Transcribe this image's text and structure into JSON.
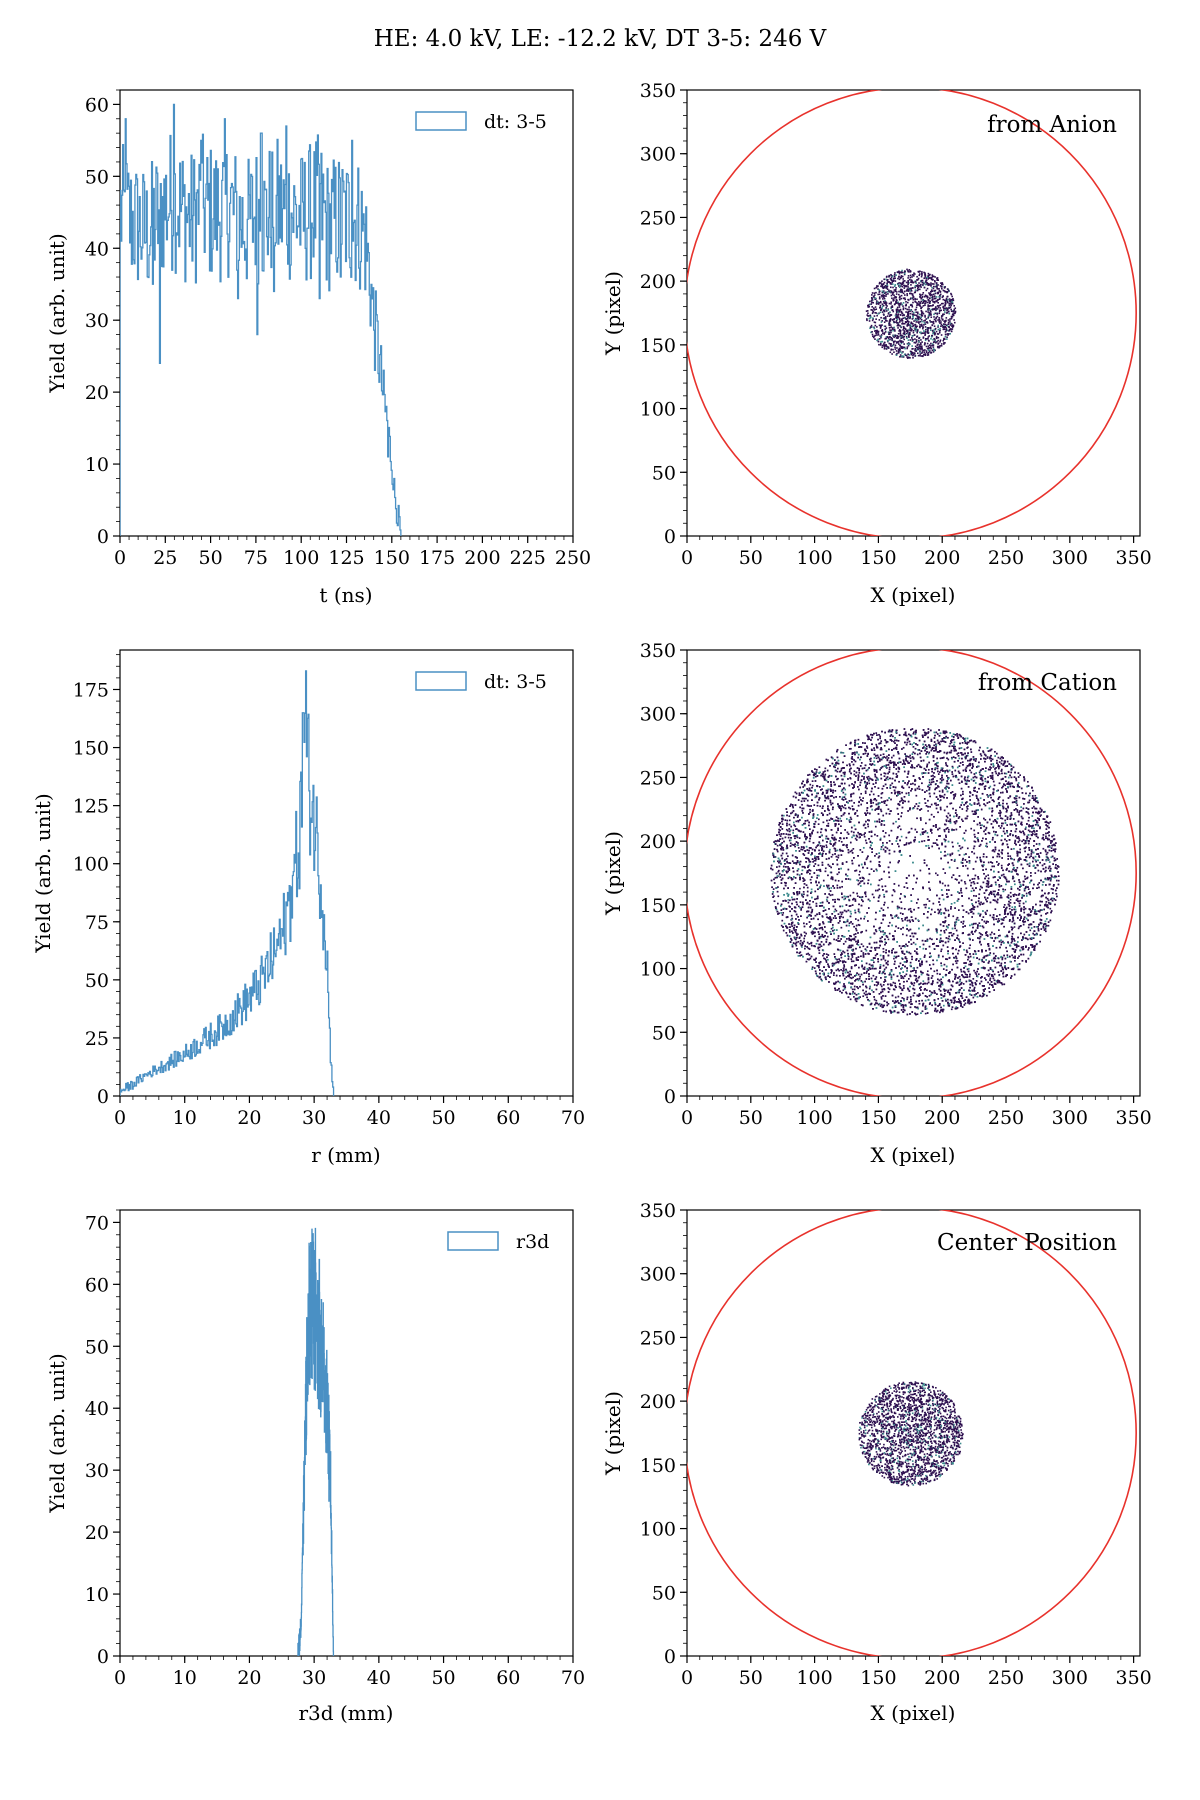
{
  "figure": {
    "title": "HE: 4.0 kV, LE: -12.2 kV, DT 3-5: 246 V"
  },
  "colors": {
    "hist": "#4a90c4",
    "circle": "#e8322c",
    "points": "#2d0f4f",
    "points_alt": "#3a8a8c"
  },
  "chart_data": [
    {
      "id": "p1",
      "type": "histogram",
      "xlabel": "t (ns)",
      "ylabel": "Yield (arb. unit)",
      "xlim": [
        0,
        250
      ],
      "ylim": [
        0,
        62
      ],
      "xticks": [
        0,
        25,
        50,
        75,
        100,
        125,
        150,
        175,
        200,
        225,
        250
      ],
      "yticks": [
        0,
        10,
        20,
        30,
        40,
        50,
        60
      ],
      "legend": {
        "label": "dt: 3-5",
        "placement": "upper right"
      },
      "series": {
        "x": [
          0,
          5,
          10,
          15,
          20,
          25,
          30,
          35,
          40,
          45,
          50,
          55,
          60,
          65,
          70,
          75,
          80,
          85,
          90,
          95,
          100,
          105,
          110,
          115,
          120,
          125,
          130,
          135,
          138,
          140,
          143,
          145,
          148,
          150,
          152,
          154,
          155
        ],
        "y": [
          45,
          44,
          43,
          42,
          44,
          46,
          47,
          45,
          44,
          46,
          45,
          45,
          46,
          44,
          43,
          45,
          44,
          46,
          45,
          45,
          44,
          45,
          46,
          43,
          44,
          44,
          44,
          42,
          36,
          30,
          25,
          20,
          15,
          10,
          5,
          2,
          0
        ],
        "spikes": [
          [
            3,
            58
          ],
          [
            18,
            35
          ],
          [
            22,
            24
          ],
          [
            30,
            60
          ],
          [
            45,
            55
          ],
          [
            58,
            58
          ],
          [
            65,
            33
          ],
          [
            76,
            28
          ],
          [
            78,
            56
          ],
          [
            85,
            34
          ],
          [
            92,
            57
          ],
          [
            110,
            33
          ],
          [
            122,
            36
          ],
          [
            128,
            55
          ],
          [
            148,
            11
          ]
        ]
      }
    },
    {
      "id": "p2",
      "type": "scatter",
      "annotation": "from Anion",
      "xlabel": "X (pixel)",
      "ylabel": "Y (pixel)",
      "xlim": [
        0,
        355
      ],
      "ylim": [
        0,
        350
      ],
      "xticks": [
        0,
        50,
        100,
        150,
        200,
        250,
        300,
        350
      ],
      "yticks": [
        0,
        50,
        100,
        150,
        200,
        250,
        300,
        350
      ],
      "circle": {
        "cx": 175,
        "cy": 175,
        "r": 177
      },
      "spot": {
        "cx": 175,
        "cy": 175,
        "r": 35
      }
    },
    {
      "id": "p3",
      "type": "histogram",
      "xlabel": "r (mm)",
      "ylabel": "Yield (arb. unit)",
      "xlim": [
        0,
        70
      ],
      "ylim": [
        0,
        192
      ],
      "xticks": [
        0,
        10,
        20,
        30,
        40,
        50,
        60,
        70
      ],
      "yticks": [
        0,
        25,
        50,
        75,
        100,
        125,
        150,
        175
      ],
      "legend": {
        "label": "dt: 3-5",
        "placement": "upper right"
      },
      "series": {
        "x": [
          0,
          2,
          4,
          6,
          8,
          10,
          12,
          14,
          16,
          18,
          20,
          22,
          24,
          26,
          27,
          28,
          28.5,
          29,
          29.5,
          30,
          31,
          32,
          32.5,
          33
        ],
        "y": [
          2,
          5,
          9,
          12,
          15,
          18,
          22,
          26,
          30,
          36,
          42,
          50,
          62,
          80,
          95,
          120,
          150,
          140,
          130,
          120,
          95,
          60,
          20,
          0
        ],
        "spikes": [
          [
            28.7,
            183
          ],
          [
            28.3,
            165
          ],
          [
            25,
            72
          ],
          [
            26.5,
            90
          ],
          [
            24,
            60
          ],
          [
            31.5,
            78
          ]
        ]
      }
    },
    {
      "id": "p4",
      "type": "scatter",
      "annotation": "from Cation",
      "xlabel": "X (pixel)",
      "ylabel": "Y (pixel)",
      "xlim": [
        0,
        355
      ],
      "ylim": [
        0,
        350
      ],
      "xticks": [
        0,
        50,
        100,
        150,
        200,
        250,
        300,
        350
      ],
      "yticks": [
        0,
        50,
        100,
        150,
        200,
        250,
        300,
        350
      ],
      "circle": {
        "cx": 175,
        "cy": 175,
        "r": 177
      },
      "spot": {
        "cx": 178,
        "cy": 177,
        "r": 113
      }
    },
    {
      "id": "p5",
      "type": "histogram",
      "xlabel": "r3d (mm)",
      "ylabel": "Yield (arb. unit)",
      "xlim": [
        0,
        70
      ],
      "ylim": [
        0,
        72
      ],
      "xticks": [
        0,
        10,
        20,
        30,
        40,
        50,
        60,
        70
      ],
      "yticks": [
        0,
        10,
        20,
        30,
        40,
        50,
        60,
        70
      ],
      "legend": {
        "label": "r3d",
        "placement": "upper right"
      },
      "series": {
        "x": [
          27.5,
          28,
          28.5,
          29,
          29.5,
          30,
          30.5,
          31,
          31.5,
          32,
          32.5,
          33
        ],
        "y": [
          0,
          5,
          30,
          52,
          58,
          55,
          50,
          48,
          46,
          40,
          30,
          0
        ],
        "spikes": [
          [
            30.2,
            69
          ],
          [
            30.8,
            64
          ],
          [
            29.6,
            61
          ],
          [
            31.4,
            57
          ],
          [
            32.3,
            25
          ]
        ]
      }
    },
    {
      "id": "p6",
      "type": "scatter",
      "annotation": "Center Position",
      "xlabel": "X (pixel)",
      "ylabel": "Y (pixel)",
      "xlim": [
        0,
        355
      ],
      "ylim": [
        0,
        350
      ],
      "xticks": [
        0,
        50,
        100,
        150,
        200,
        250,
        300,
        350
      ],
      "yticks": [
        0,
        50,
        100,
        150,
        200,
        250,
        300,
        350
      ],
      "circle": {
        "cx": 175,
        "cy": 175,
        "r": 177
      },
      "spot": {
        "cx": 175,
        "cy": 175,
        "r": 41
      }
    }
  ]
}
